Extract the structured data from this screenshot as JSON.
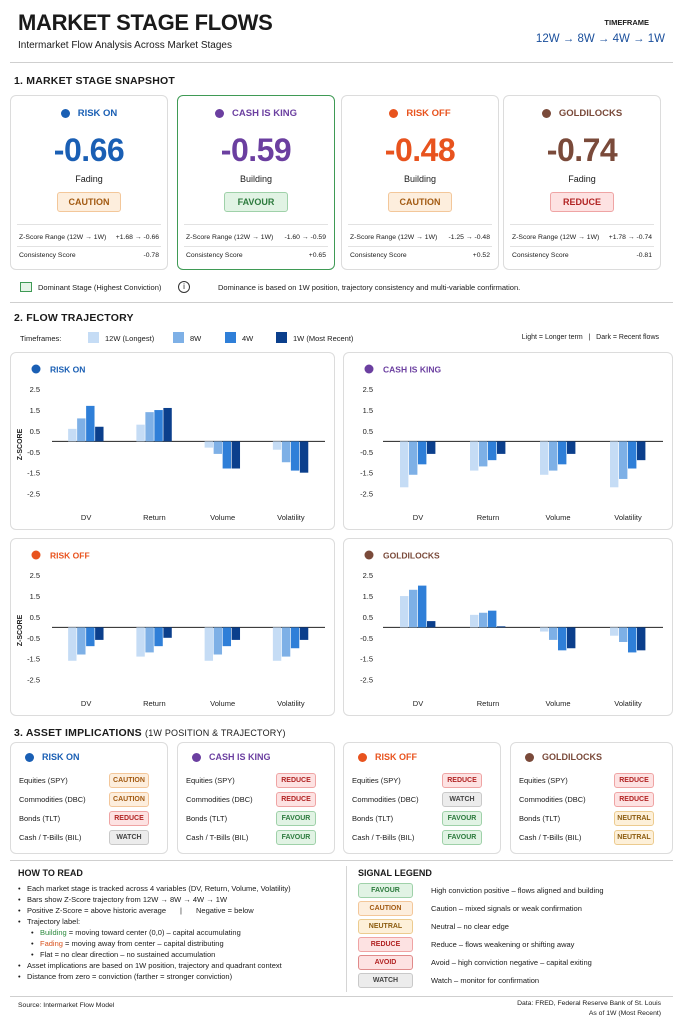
{
  "header": {
    "title": "MARKET STAGE FLOWS",
    "subtitle": "Intermarket Flow Analysis Across Market Stages",
    "timeframe_label": "TIMEFRAME",
    "timeframe_value": "12W → 8W → 4W → 1W"
  },
  "snapshot": {
    "heading": "1. MARKET STAGE SNAPSHOT",
    "range_label": "Z-Score Range (12W → 1W)",
    "consistency_label": "Consistency Score",
    "cards": [
      {
        "name": "RISK ON",
        "color": "#1a5fb4",
        "value": "-0.66",
        "trend": "Fading",
        "signal": "CAUTION",
        "signal_class": "caution",
        "range": "+1.68 → -0.66",
        "consistency": "-0.78",
        "dominant": false
      },
      {
        "name": "CASH IS KING",
        "color": "#6b3fa0",
        "value": "-0.59",
        "trend": "Building",
        "signal": "FAVOUR",
        "signal_class": "favour",
        "range": "-1.60 → -0.59",
        "consistency": "+0.65",
        "dominant": true
      },
      {
        "name": "RISK OFF",
        "color": "#e8531e",
        "value": "-0.48",
        "trend": "Building",
        "signal": "CAUTION",
        "signal_class": "caution",
        "range": "-1.25 → -0.48",
        "consistency": "+0.52",
        "dominant": false
      },
      {
        "name": "GOLDILOCKS",
        "color": "#7a4a3a",
        "value": "-0.74",
        "trend": "Fading",
        "signal": "REDUCE",
        "signal_class": "reduce",
        "range": "+1.78 → -0.74",
        "consistency": "-0.81",
        "dominant": false
      }
    ],
    "dominant_legend": "Dominant Stage (Highest Conviction)",
    "info_icon": "info-icon",
    "dominance_note": "Dominance is based on 1W position, trajectory consistency and multi-variable confirmation."
  },
  "trajectory": {
    "heading": "2. FLOW TRAJECTORY",
    "timeframes_label": "Timeframes:",
    "shade_note": "Light = Longer term   |   Dark = Recent flows",
    "timeframe_colors": [
      "#c5dcf5",
      "#7eb0e6",
      "#2f7fd8",
      "#0b3f8c"
    ]
  },
  "chart_data": [
    {
      "type": "bar",
      "title": "RISK ON",
      "title_color": "#1a5fb4",
      "dot_color": "#1a5fb4",
      "categories": [
        "DV",
        "Return",
        "Volume",
        "Volatility"
      ],
      "ylabel": "Z-SCORE",
      "ylim": [
        -3.0,
        2.7
      ],
      "yticks": [
        {
          "v": 2.5,
          "l": "2.5"
        },
        {
          "v": 1.5,
          "l": "1.5"
        },
        {
          "v": 0.5,
          "l": "0.5"
        },
        {
          "v": -0.5,
          "l": "-0.5"
        },
        {
          "v": -1.5,
          "l": "-1.5"
        },
        {
          "v": -2.5,
          "l": "-2.5"
        }
      ],
      "series": [
        {
          "name": "12W (Longest)",
          "values": [
            0.6,
            0.8,
            -0.3,
            -0.4
          ]
        },
        {
          "name": "8W",
          "values": [
            1.1,
            1.4,
            -0.6,
            -1.0
          ]
        },
        {
          "name": "4W",
          "values": [
            1.7,
            1.5,
            -1.3,
            -1.4
          ]
        },
        {
          "name": "1W (Most Recent)",
          "values": [
            0.7,
            1.6,
            -1.3,
            -1.5
          ]
        }
      ]
    },
    {
      "type": "bar",
      "title": "CASH IS KING",
      "title_color": "#6b3fa0",
      "dot_color": "#6b3fa0",
      "categories": [
        "DV",
        "Return",
        "Volume",
        "Volatility"
      ],
      "ylabel": "",
      "ylim": [
        -3.0,
        2.7
      ],
      "yticks": [
        {
          "v": 2.5,
          "l": "2.5"
        },
        {
          "v": 1.5,
          "l": "1.5"
        },
        {
          "v": 0.5,
          "l": "0.5"
        },
        {
          "v": -0.5,
          "l": "-0.5"
        },
        {
          "v": -1.5,
          "l": "-1.5"
        },
        {
          "v": -2.5,
          "l": "-2.5"
        }
      ],
      "series": [
        {
          "name": "12W (Longest)",
          "values": [
            -2.2,
            -1.4,
            -1.6,
            -2.2
          ]
        },
        {
          "name": "8W",
          "values": [
            -1.6,
            -1.2,
            -1.4,
            -1.8
          ]
        },
        {
          "name": "4W",
          "values": [
            -1.1,
            -0.9,
            -1.1,
            -1.3
          ]
        },
        {
          "name": "1W (Most Recent)",
          "values": [
            -0.6,
            -0.6,
            -0.6,
            -0.9
          ]
        }
      ]
    },
    {
      "type": "bar",
      "title": "RISK OFF",
      "title_color": "#e8531e",
      "dot_color": "#e8531e",
      "categories": [
        "DV",
        "Return",
        "Volume",
        "Volatility"
      ],
      "ylabel": "Z-SCORE",
      "ylim": [
        -3.0,
        2.7
      ],
      "yticks": [
        {
          "v": 2.5,
          "l": "2.5"
        },
        {
          "v": 1.5,
          "l": "1.5"
        },
        {
          "v": 0.5,
          "l": "0.5"
        },
        {
          "v": -0.5,
          "l": "-0.5"
        },
        {
          "v": -1.5,
          "l": "-1.5"
        },
        {
          "v": -2.5,
          "l": "-2.5"
        }
      ],
      "series": [
        {
          "name": "12W (Longest)",
          "values": [
            -1.6,
            -1.4,
            -1.6,
            -1.6
          ]
        },
        {
          "name": "8W",
          "values": [
            -1.3,
            -1.2,
            -1.3,
            -1.4
          ]
        },
        {
          "name": "4W",
          "values": [
            -0.9,
            -0.9,
            -0.9,
            -1.0
          ]
        },
        {
          "name": "1W (Most Recent)",
          "values": [
            -0.6,
            -0.5,
            -0.6,
            -0.6
          ]
        }
      ]
    },
    {
      "type": "bar",
      "title": "GOLDILOCKS",
      "title_color": "#7a4a3a",
      "dot_color": "#7a4a3a",
      "categories": [
        "DV",
        "Return",
        "Volume",
        "Volatility"
      ],
      "ylabel": "",
      "ylim": [
        -3.0,
        2.7
      ],
      "yticks": [
        {
          "v": 2.5,
          "l": "2.5"
        },
        {
          "v": 1.5,
          "l": "1.5"
        },
        {
          "v": 0.5,
          "l": "0.5"
        },
        {
          "v": -0.5,
          "l": "-0.5"
        },
        {
          "v": -1.5,
          "l": "-1.5"
        },
        {
          "v": -2.5,
          "l": "-2.5"
        }
      ],
      "series": [
        {
          "name": "12W (Longest)",
          "values": [
            1.5,
            0.6,
            -0.2,
            -0.4
          ]
        },
        {
          "name": "8W",
          "values": [
            1.8,
            0.7,
            -0.6,
            -0.7
          ]
        },
        {
          "name": "4W",
          "values": [
            2.0,
            0.8,
            -1.1,
            -1.2
          ]
        },
        {
          "name": "1W (Most Recent)",
          "values": [
            0.3,
            0.05,
            -1.0,
            -1.1
          ]
        }
      ]
    }
  ],
  "implications": {
    "heading": "3. ASSET IMPLICATIONS",
    "heading_sub": "(1W POSITION & TRAJECTORY)",
    "cards": [
      {
        "name": "RISK ON",
        "color": "#1a5fb4",
        "assets": [
          {
            "asset": "Equities (SPY)",
            "signal": "CAUTION",
            "cls": "caution"
          },
          {
            "asset": "Commodities (DBC)",
            "signal": "CAUTION",
            "cls": "caution"
          },
          {
            "asset": "Bonds (TLT)",
            "signal": "REDUCE",
            "cls": "reduce"
          },
          {
            "asset": "Cash / T-Bills (BIL)",
            "signal": "WATCH",
            "cls": "watch"
          }
        ]
      },
      {
        "name": "CASH IS KING",
        "color": "#6b3fa0",
        "assets": [
          {
            "asset": "Equities (SPY)",
            "signal": "REDUCE",
            "cls": "reduce"
          },
          {
            "asset": "Commodities (DBC)",
            "signal": "REDUCE",
            "cls": "reduce"
          },
          {
            "asset": "Bonds (TLT)",
            "signal": "FAVOUR",
            "cls": "favour"
          },
          {
            "asset": "Cash / T-Bills (BIL)",
            "signal": "FAVOUR",
            "cls": "favour"
          }
        ]
      },
      {
        "name": "RISK OFF",
        "color": "#e8531e",
        "assets": [
          {
            "asset": "Equities (SPY)",
            "signal": "REDUCE",
            "cls": "reduce"
          },
          {
            "asset": "Commodities (DBC)",
            "signal": "WATCH",
            "cls": "watch"
          },
          {
            "asset": "Bonds (TLT)",
            "signal": "FAVOUR",
            "cls": "favour"
          },
          {
            "asset": "Cash / T-Bills (BIL)",
            "signal": "FAVOUR",
            "cls": "favour"
          }
        ]
      },
      {
        "name": "GOLDILOCKS",
        "color": "#7a4a3a",
        "assets": [
          {
            "asset": "Equities (SPY)",
            "signal": "REDUCE",
            "cls": "reduce"
          },
          {
            "asset": "Commodities (DBC)",
            "signal": "REDUCE",
            "cls": "reduce"
          },
          {
            "asset": "Bonds (TLT)",
            "signal": "NEUTRAL",
            "cls": "neutral"
          },
          {
            "asset": "Cash / T-Bills (BIL)",
            "signal": "NEUTRAL",
            "cls": "neutral"
          }
        ]
      }
    ]
  },
  "howto": {
    "heading": "HOW TO READ",
    "b1": "Each market stage is tracked across 4 variables (DV, Return, Volume, Volatility)",
    "b2": "Bars show Z-Score trajectory from 12W → 8W → 4W → 1W",
    "b3a": "Positive Z-Score = above historic average",
    "b3sep": "|",
    "b3b": "Negative = below",
    "b4": "Trajectory label:",
    "s1k": "Building",
    "s1v": "= moving toward center (0,0) – capital accumulating",
    "s2k": "Fading",
    "s2v": "= moving away from center – capital distributing",
    "s3": "Flat = no clear direction – no sustained accumulation",
    "b5": "Asset implications are based on 1W position, trajectory and quadrant context",
    "b6": "Distance from zero = conviction (farther = stronger conviction)"
  },
  "signal_legend": {
    "heading": "SIGNAL LEGEND",
    "items": [
      {
        "label": "FAVOUR",
        "cls": "favour",
        "desc": "High conviction positive – flows aligned and building"
      },
      {
        "label": "CAUTION",
        "cls": "caution",
        "desc": "Caution – mixed signals or weak confirmation"
      },
      {
        "label": "NEUTRAL",
        "cls": "neutral",
        "desc": "Neutral – no clear edge"
      },
      {
        "label": "REDUCE",
        "cls": "reduce",
        "desc": "Reduce – flows weakening or shifting away"
      },
      {
        "label": "AVOID",
        "cls": "avoid",
        "desc": "Avoid – high conviction negative – capital exiting"
      },
      {
        "label": "WATCH",
        "cls": "watch",
        "desc": "Watch – monitor for confirmation"
      }
    ]
  },
  "footer": {
    "source": "Source: Intermarket Flow Model",
    "data": "Data: FRED, Federal Reserve Bank of St. Louis",
    "asof": "As of 1W (Most Recent)"
  }
}
